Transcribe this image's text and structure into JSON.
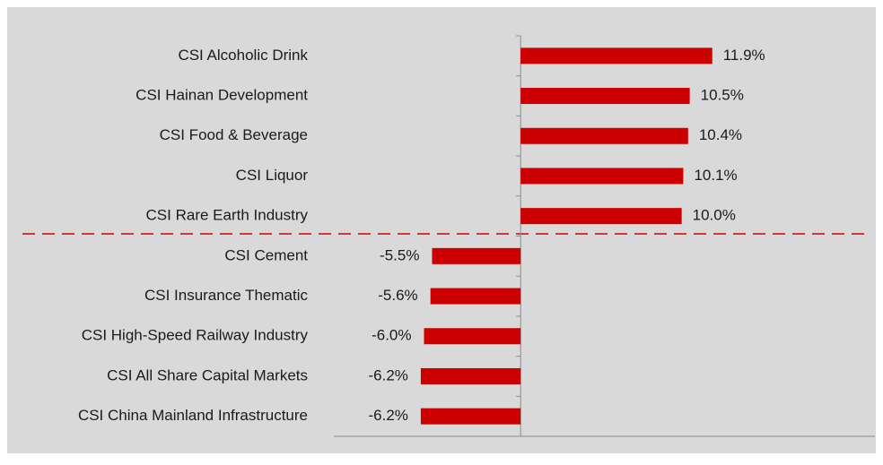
{
  "chart_data": {
    "type": "barh",
    "categories": [
      "CSI Alcoholic Drink",
      "CSI Hainan Development",
      "CSI Food & Beverage",
      "CSI Liquor",
      "CSI Rare Earth Industry",
      "CSI Cement",
      "CSI Insurance Thematic",
      "CSI High-Speed Railway Industry",
      "CSI All Share Capital Markets",
      "CSI China Mainland Infrastructure"
    ],
    "values": [
      11.9,
      10.5,
      10.4,
      10.1,
      10.0,
      -5.5,
      -5.6,
      -6.0,
      -6.2,
      -6.2
    ],
    "value_labels": [
      "11.9%",
      "10.5%",
      "10.4%",
      "10.1%",
      "10.0%",
      "-5.5%",
      "-5.6%",
      "-6.0%",
      "-6.2%",
      "-6.2%"
    ],
    "color": "#cc0000",
    "xlim": [
      -11.6,
      22
    ]
  }
}
